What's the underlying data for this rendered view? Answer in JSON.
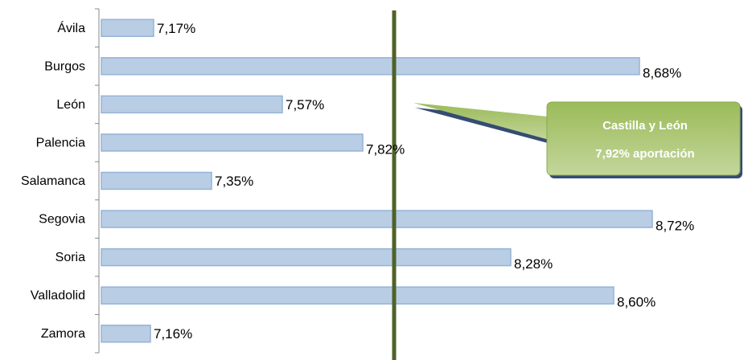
{
  "chart_data": {
    "type": "bar",
    "orientation": "horizontal",
    "categories": [
      "Ávila",
      "Burgos",
      "León",
      "Palencia",
      "Salamanca",
      "Segovia",
      "Soria",
      "Valladolid",
      "Zamora"
    ],
    "values": [
      7.17,
      8.68,
      7.57,
      7.82,
      7.35,
      8.72,
      8.28,
      8.6,
      7.16
    ],
    "value_labels": [
      "7,17%",
      "8,68%",
      "7,57%",
      "7,82%",
      "7,35%",
      "8,72%",
      "8,28%",
      "8,60%",
      "7,16%"
    ],
    "xlim": [
      7.0,
      8.8
    ],
    "reference_line": {
      "value": 7.92
    },
    "callout": {
      "line1": "Castilla y León",
      "line2": "7,92% aportación"
    },
    "colors": {
      "bar_fill": "#b9cde5",
      "bar_stroke": "#95b3d7",
      "reference_line": "#4f6228",
      "callout_fill": "#9bbb59"
    }
  }
}
